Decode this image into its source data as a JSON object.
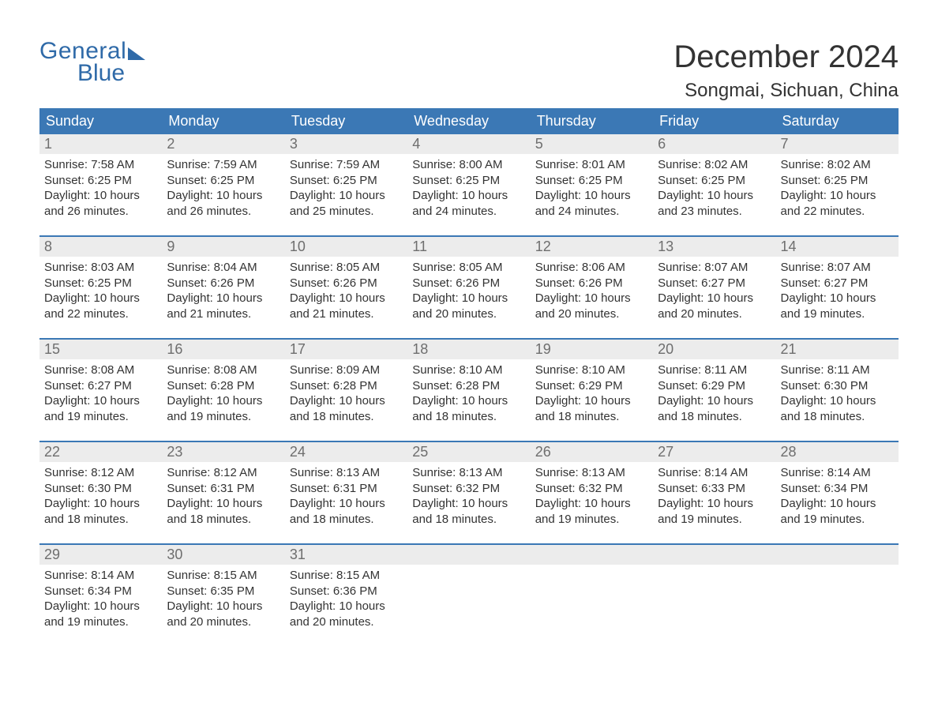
{
  "brand": {
    "part1": "General",
    "part2": "Blue"
  },
  "title": "December 2024",
  "location": "Songmai, Sichuan, China",
  "colors": {
    "header_bg": "#3b78b5",
    "header_text": "#ffffff",
    "daynum_bg": "#ececec",
    "daynum_text": "#6e6e6e",
    "body_text": "#333333",
    "brand_color": "#2f6aa8",
    "page_bg": "#ffffff",
    "week_divider": "#3b78b5"
  },
  "typography": {
    "title_fontsize": 40,
    "location_fontsize": 24,
    "header_fontsize": 18,
    "daynum_fontsize": 18,
    "cell_fontsize": 15
  },
  "layout": {
    "columns": 7,
    "rows": 5,
    "cell_min_height": 128
  },
  "weekdays": [
    "Sunday",
    "Monday",
    "Tuesday",
    "Wednesday",
    "Thursday",
    "Friday",
    "Saturday"
  ],
  "labels": {
    "sunrise": "Sunrise",
    "sunset": "Sunset",
    "daylight": "Daylight"
  },
  "days": [
    {
      "n": 1,
      "sunrise": "7:58 AM",
      "sunset": "6:25 PM",
      "daylight": "10 hours and 26 minutes."
    },
    {
      "n": 2,
      "sunrise": "7:59 AM",
      "sunset": "6:25 PM",
      "daylight": "10 hours and 26 minutes."
    },
    {
      "n": 3,
      "sunrise": "7:59 AM",
      "sunset": "6:25 PM",
      "daylight": "10 hours and 25 minutes."
    },
    {
      "n": 4,
      "sunrise": "8:00 AM",
      "sunset": "6:25 PM",
      "daylight": "10 hours and 24 minutes."
    },
    {
      "n": 5,
      "sunrise": "8:01 AM",
      "sunset": "6:25 PM",
      "daylight": "10 hours and 24 minutes."
    },
    {
      "n": 6,
      "sunrise": "8:02 AM",
      "sunset": "6:25 PM",
      "daylight": "10 hours and 23 minutes."
    },
    {
      "n": 7,
      "sunrise": "8:02 AM",
      "sunset": "6:25 PM",
      "daylight": "10 hours and 22 minutes."
    },
    {
      "n": 8,
      "sunrise": "8:03 AM",
      "sunset": "6:25 PM",
      "daylight": "10 hours and 22 minutes."
    },
    {
      "n": 9,
      "sunrise": "8:04 AM",
      "sunset": "6:26 PM",
      "daylight": "10 hours and 21 minutes."
    },
    {
      "n": 10,
      "sunrise": "8:05 AM",
      "sunset": "6:26 PM",
      "daylight": "10 hours and 21 minutes."
    },
    {
      "n": 11,
      "sunrise": "8:05 AM",
      "sunset": "6:26 PM",
      "daylight": "10 hours and 20 minutes."
    },
    {
      "n": 12,
      "sunrise": "8:06 AM",
      "sunset": "6:26 PM",
      "daylight": "10 hours and 20 minutes."
    },
    {
      "n": 13,
      "sunrise": "8:07 AM",
      "sunset": "6:27 PM",
      "daylight": "10 hours and 20 minutes."
    },
    {
      "n": 14,
      "sunrise": "8:07 AM",
      "sunset": "6:27 PM",
      "daylight": "10 hours and 19 minutes."
    },
    {
      "n": 15,
      "sunrise": "8:08 AM",
      "sunset": "6:27 PM",
      "daylight": "10 hours and 19 minutes."
    },
    {
      "n": 16,
      "sunrise": "8:08 AM",
      "sunset": "6:28 PM",
      "daylight": "10 hours and 19 minutes."
    },
    {
      "n": 17,
      "sunrise": "8:09 AM",
      "sunset": "6:28 PM",
      "daylight": "10 hours and 18 minutes."
    },
    {
      "n": 18,
      "sunrise": "8:10 AM",
      "sunset": "6:28 PM",
      "daylight": "10 hours and 18 minutes."
    },
    {
      "n": 19,
      "sunrise": "8:10 AM",
      "sunset": "6:29 PM",
      "daylight": "10 hours and 18 minutes."
    },
    {
      "n": 20,
      "sunrise": "8:11 AM",
      "sunset": "6:29 PM",
      "daylight": "10 hours and 18 minutes."
    },
    {
      "n": 21,
      "sunrise": "8:11 AM",
      "sunset": "6:30 PM",
      "daylight": "10 hours and 18 minutes."
    },
    {
      "n": 22,
      "sunrise": "8:12 AM",
      "sunset": "6:30 PM",
      "daylight": "10 hours and 18 minutes."
    },
    {
      "n": 23,
      "sunrise": "8:12 AM",
      "sunset": "6:31 PM",
      "daylight": "10 hours and 18 minutes."
    },
    {
      "n": 24,
      "sunrise": "8:13 AM",
      "sunset": "6:31 PM",
      "daylight": "10 hours and 18 minutes."
    },
    {
      "n": 25,
      "sunrise": "8:13 AM",
      "sunset": "6:32 PM",
      "daylight": "10 hours and 18 minutes."
    },
    {
      "n": 26,
      "sunrise": "8:13 AM",
      "sunset": "6:32 PM",
      "daylight": "10 hours and 19 minutes."
    },
    {
      "n": 27,
      "sunrise": "8:14 AM",
      "sunset": "6:33 PM",
      "daylight": "10 hours and 19 minutes."
    },
    {
      "n": 28,
      "sunrise": "8:14 AM",
      "sunset": "6:34 PM",
      "daylight": "10 hours and 19 minutes."
    },
    {
      "n": 29,
      "sunrise": "8:14 AM",
      "sunset": "6:34 PM",
      "daylight": "10 hours and 19 minutes."
    },
    {
      "n": 30,
      "sunrise": "8:15 AM",
      "sunset": "6:35 PM",
      "daylight": "10 hours and 20 minutes."
    },
    {
      "n": 31,
      "sunrise": "8:15 AM",
      "sunset": "6:36 PM",
      "daylight": "10 hours and 20 minutes."
    }
  ],
  "start_weekday_index": 0,
  "trailing_blanks": 4
}
